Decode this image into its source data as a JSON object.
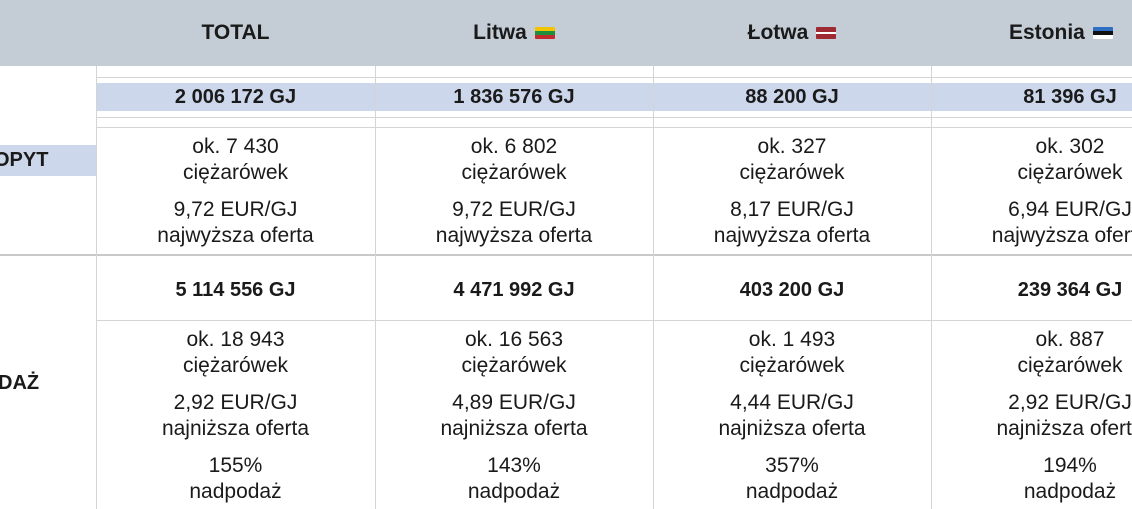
{
  "columns": [
    {
      "label": "TOTAL",
      "flag": ""
    },
    {
      "label": "Litwa",
      "flag": "flag-lt"
    },
    {
      "label": "Łotwa",
      "flag": "flag-lv"
    },
    {
      "label": "Estonia",
      "flag": "flag-ee"
    }
  ],
  "row_labels": {
    "demand": "OPYT",
    "supply": "DAŻ"
  },
  "demand": {
    "volume": [
      "2 006 172 GJ",
      "1 836 576 GJ",
      "88 200 GJ",
      "81 396 GJ"
    ],
    "trucks_num": [
      "ok. 7 430",
      "ok. 6 802",
      "ok. 327",
      "ok. 302"
    ],
    "trucks_unit": [
      "ciężarówek",
      "ciężarówek",
      "ciężarówek",
      "ciężarówek"
    ],
    "price": [
      "9,72 EUR/GJ",
      "9,72 EUR/GJ",
      "8,17 EUR/GJ",
      "6,94 EUR/GJ"
    ],
    "price_note": [
      "najwyższa oferta",
      "najwyższa oferta",
      "najwyższa oferta",
      "najwyższa oferta"
    ]
  },
  "supply": {
    "volume": [
      "5 114 556 GJ",
      "4 471 992 GJ",
      "403 200 GJ",
      "239 364 GJ"
    ],
    "trucks_num": [
      "ok. 18 943",
      "ok. 16 563",
      "ok. 1 493",
      "ok. 887"
    ],
    "trucks_unit": [
      "ciężarówek",
      "ciężarówek",
      "ciężarówek",
      "ciężarówek"
    ],
    "price": [
      "2,92 EUR/GJ",
      "4,89 EUR/GJ",
      "4,44 EUR/GJ",
      "2,92 EUR/GJ"
    ],
    "price_note": [
      "najniższa oferta",
      "najniższa oferta",
      "najniższa oferta",
      "najniższa oferta"
    ],
    "surplus_pct": [
      "155%",
      "143%",
      "357%",
      "194%"
    ],
    "surplus_note": [
      "nadpodaż",
      "nadpodaż",
      "nadpodaż",
      "nadpodaż"
    ]
  },
  "colors": {
    "header_bg": "#c4cdd5",
    "highlight_bg": "#cdd7ec",
    "grid": "#d4d4d4"
  }
}
